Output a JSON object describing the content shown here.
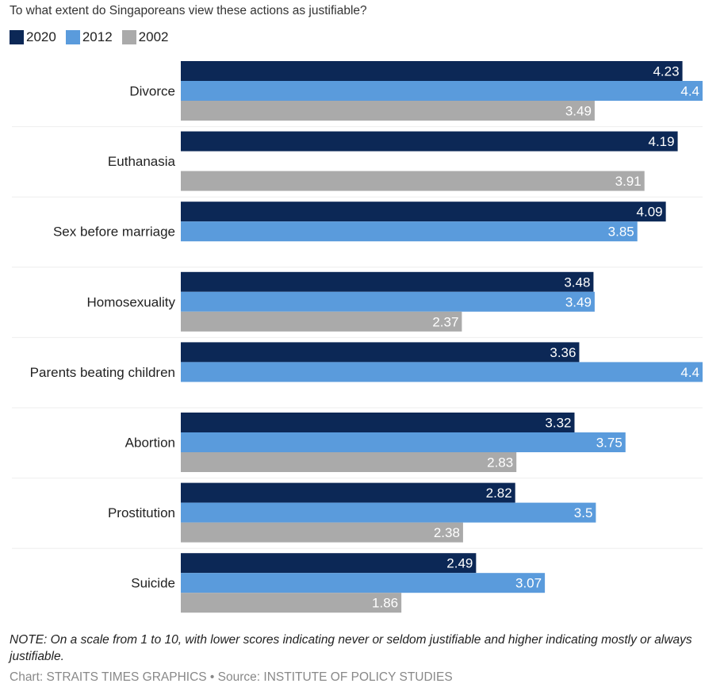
{
  "colors": {
    "2020": "#0c2856",
    "2012": "#5a9bdc",
    "2002": "#aaaaaa",
    "label_text": "#ffffff",
    "category_text": "#222222",
    "separator": "#eeeeee"
  },
  "legend": [
    {
      "label": "2020",
      "color": "#0c2856"
    },
    {
      "label": "2012",
      "color": "#5a9bdc"
    },
    {
      "label": "2002",
      "color": "#aaaaaa"
    }
  ],
  "note": "NOTE: On a scale from 1 to 10, with lower scores indicating never or seldom justifiable and higher indicating mostly or always justifiable.",
  "credit": "Chart: STRAITS TIMES GRAPHICS • Source: INSTITUTE OF POLICY STUDIES",
  "chart_data": {
    "type": "bar",
    "orientation": "horizontal",
    "title": "To what extent do Singaporeans view these actions as justifiable?",
    "xlabel": "",
    "ylabel": "",
    "xlim": [
      0,
      4.4
    ],
    "grid": false,
    "legend_position": "top-left",
    "categories": [
      "Divorce",
      "Euthanasia",
      "Sex before marriage",
      "Homosexuality",
      "Parents beating children",
      "Abortion",
      "Prostitution",
      "Suicide"
    ],
    "series": [
      {
        "name": "2020",
        "values": [
          4.23,
          4.19,
          4.09,
          3.48,
          3.36,
          3.32,
          2.82,
          2.49
        ],
        "labels": [
          "4.23",
          "4.19",
          "4.09",
          "3.48",
          "3.36",
          "3.32",
          "2.82",
          "2.49"
        ]
      },
      {
        "name": "2012",
        "values": [
          4.4,
          null,
          3.85,
          3.49,
          4.4,
          3.75,
          3.5,
          3.07
        ],
        "labels": [
          "4.4",
          null,
          "3.85",
          "3.49",
          "4.4",
          "3.75",
          "3.5",
          "3.07"
        ]
      },
      {
        "name": "2002",
        "values": [
          3.49,
          3.91,
          null,
          2.37,
          null,
          2.83,
          2.38,
          1.86
        ],
        "labels": [
          "3.49",
          "3.91",
          null,
          "2.37",
          null,
          "2.83",
          "2.38",
          "1.86"
        ]
      }
    ]
  }
}
